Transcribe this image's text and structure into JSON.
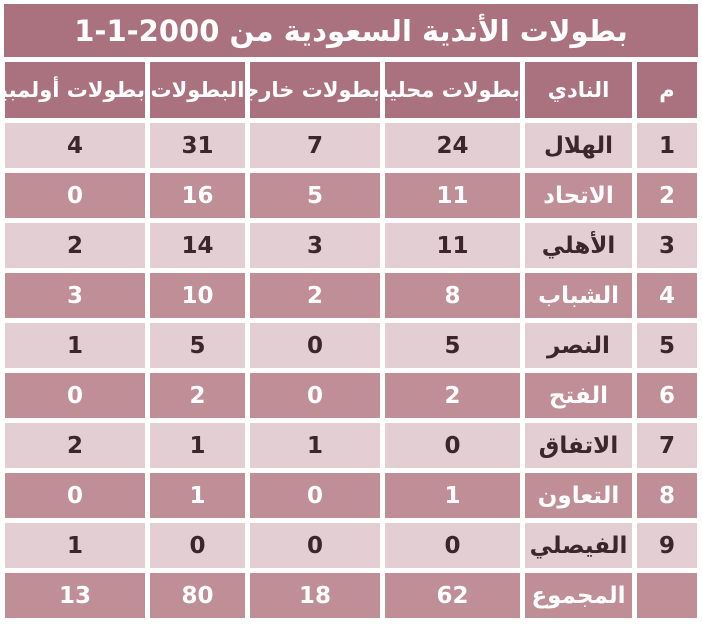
{
  "title": "بطولات الأندية السعودية من 2000-1-1",
  "colors": {
    "header_bg": "#aa727f",
    "row_light_bg": "#e3ced3",
    "row_dark_bg": "#bf8e97",
    "text_dark": "#3a262b",
    "text_on_dark": "#ffffff",
    "page_bg": "#ffffff"
  },
  "chart_data": {
    "type": "table",
    "title": "بطولات الأندية السعودية من 2000-1-1",
    "layout": {
      "direction": "rtl",
      "row_alternation": "light/dark",
      "total_row_style": "dark"
    },
    "columns": [
      {
        "key": "rank",
        "label": "م"
      },
      {
        "key": "club",
        "label": "النادي"
      },
      {
        "key": "domestic",
        "label": "بطولات محلية"
      },
      {
        "key": "external",
        "label": "بطولات خارجية"
      },
      {
        "key": "total",
        "label": "البطولات"
      },
      {
        "key": "olympic",
        "label": "بطولات أولمبية"
      }
    ],
    "rows": [
      {
        "rank": "1",
        "club": "الهلال",
        "domestic": "24",
        "external": "7",
        "total": "31",
        "olympic": "4"
      },
      {
        "rank": "2",
        "club": "الاتحاد",
        "domestic": "11",
        "external": "5",
        "total": "16",
        "olympic": "0"
      },
      {
        "rank": "3",
        "club": "الأهلي",
        "domestic": "11",
        "external": "3",
        "total": "14",
        "olympic": "2"
      },
      {
        "rank": "4",
        "club": "الشباب",
        "domestic": "8",
        "external": "2",
        "total": "10",
        "olympic": "3"
      },
      {
        "rank": "5",
        "club": "النصر",
        "domestic": "5",
        "external": "0",
        "total": "5",
        "olympic": "1"
      },
      {
        "rank": "6",
        "club": "الفتح",
        "domestic": "2",
        "external": "0",
        "total": "2",
        "olympic": "0"
      },
      {
        "rank": "7",
        "club": "الاتفاق",
        "domestic": "0",
        "external": "1",
        "total": "1",
        "olympic": "2"
      },
      {
        "rank": "8",
        "club": "التعاون",
        "domestic": "1",
        "external": "0",
        "total": "1",
        "olympic": "0"
      },
      {
        "rank": "9",
        "club": "الفيصلي",
        "domestic": "0",
        "external": "0",
        "total": "0",
        "olympic": "1"
      }
    ],
    "total_row": {
      "rank": "",
      "club": "المجموع",
      "domestic": "62",
      "external": "18",
      "total": "80",
      "olympic": "13"
    }
  }
}
